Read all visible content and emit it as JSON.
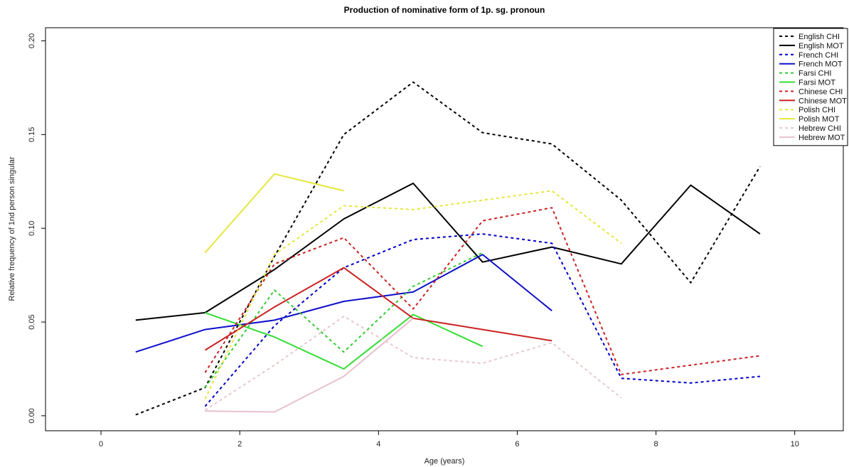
{
  "chart_data": {
    "type": "line",
    "title": "Production of nominative form of 1p. sg. pronoun",
    "xlabel": "Age (years)",
    "ylabel": "Relative frequency of 1nd person singular",
    "xlim": [
      -0.8,
      10.7
    ],
    "ylim": [
      -0.008,
      0.207
    ],
    "xticks": [
      0,
      2,
      4,
      6,
      8,
      10
    ],
    "xtick_labels": [
      "0",
      "2",
      "4",
      "6",
      "8",
      "10"
    ],
    "yticks": [
      0.0,
      0.05,
      0.1,
      0.15,
      0.2
    ],
    "ytick_labels": [
      "0.00",
      "0.05",
      "0.10",
      "0.15",
      "0.20"
    ],
    "grid": false,
    "legend_position": "top-right",
    "series": [
      {
        "name": "English CHI",
        "color": "#000000",
        "style": "dotted",
        "x": [
          0.5,
          1.5,
          2.5,
          3.5,
          4.5,
          5.5,
          6.5,
          7.5,
          8.5,
          9.5
        ],
        "y": [
          0.0005,
          0.015,
          0.085,
          0.15,
          0.178,
          0.151,
          0.145,
          0.115,
          0.071,
          0.133
        ]
      },
      {
        "name": "English MOT",
        "color": "#000000",
        "style": "solid",
        "x": [
          0.5,
          1.5,
          2.5,
          3.5,
          4.5,
          5.5,
          6.5,
          7.5,
          8.5,
          9.5
        ],
        "y": [
          0.051,
          0.055,
          0.078,
          0.105,
          0.124,
          0.082,
          0.09,
          0.081,
          0.123,
          0.097
        ]
      },
      {
        "name": "French CHI",
        "color": "#0000cc",
        "style": "dotted",
        "x": [
          1.5,
          2.5,
          3.5,
          4.5,
          5.5,
          6.5,
          7.5,
          8.5,
          9.5
        ],
        "y": [
          0.005,
          0.048,
          0.079,
          0.094,
          0.097,
          0.092,
          0.02,
          0.0175,
          0.021
        ]
      },
      {
        "name": "French MOT",
        "color": "#1010cc",
        "style": "solid",
        "x": [
          0.5,
          1.5,
          2.5,
          3.5,
          4.5,
          5.5,
          6.5
        ],
        "y": [
          0.034,
          0.046,
          0.051,
          0.061,
          0.066,
          0.086,
          0.056
        ]
      },
      {
        "name": "Farsi CHI",
        "color": "#33cc33",
        "style": "dotted",
        "x": [
          1.5,
          2.5,
          3.5,
          4.5,
          5.5
        ],
        "y": [
          0.015,
          0.067,
          0.034,
          0.069,
          0.087
        ]
      },
      {
        "name": "Farsi MOT",
        "color": "#33dd33",
        "style": "solid",
        "x": [
          1.5,
          2.5,
          3.5,
          4.5,
          5.5
        ],
        "y": [
          0.055,
          0.042,
          0.025,
          0.054,
          0.037
        ]
      },
      {
        "name": "Chinese CHI",
        "color": "#cc2222",
        "style": "dotted",
        "x": [
          1.5,
          2.5,
          3.5,
          4.5,
          5.5,
          6.5,
          7.5,
          8.5,
          9.5
        ],
        "y": [
          0.023,
          0.081,
          0.095,
          0.057,
          0.104,
          0.111,
          0.022,
          0.027,
          0.032
        ]
      },
      {
        "name": "Chinese MOT",
        "color": "#cc2222",
        "style": "solid",
        "x": [
          1.5,
          2.5,
          3.5,
          4.5,
          5.5,
          6.5
        ],
        "y": [
          0.035,
          0.058,
          0.079,
          0.052,
          0.046,
          0.04
        ]
      },
      {
        "name": "Polish CHI",
        "color": "#e6e63c",
        "style": "dotted",
        "x": [
          1.5,
          2.5,
          3.5,
          4.5,
          5.5,
          6.5,
          7.5
        ],
        "y": [
          0.009,
          0.086,
          0.112,
          0.11,
          0.115,
          0.12,
          0.092
        ]
      },
      {
        "name": "Polish MOT",
        "color": "#e6e63c",
        "style": "solid",
        "x": [
          1.5,
          2.5,
          3.5
        ],
        "y": [
          0.087,
          0.129,
          0.12
        ]
      },
      {
        "name": "Hebrew CHI",
        "color": "#e8c8cc",
        "style": "dotted",
        "x": [
          1.5,
          2.5,
          3.5,
          4.5,
          5.5,
          6.5,
          7.5
        ],
        "y": [
          0.003,
          0.027,
          0.053,
          0.031,
          0.028,
          0.039,
          0.0095
        ]
      },
      {
        "name": "Hebrew MOT",
        "color": "#e8c0cc",
        "style": "solid",
        "x": [
          1.5,
          2.5,
          3.5,
          4.5
        ],
        "y": [
          0.0025,
          0.002,
          0.021,
          0.052
        ]
      }
    ]
  }
}
